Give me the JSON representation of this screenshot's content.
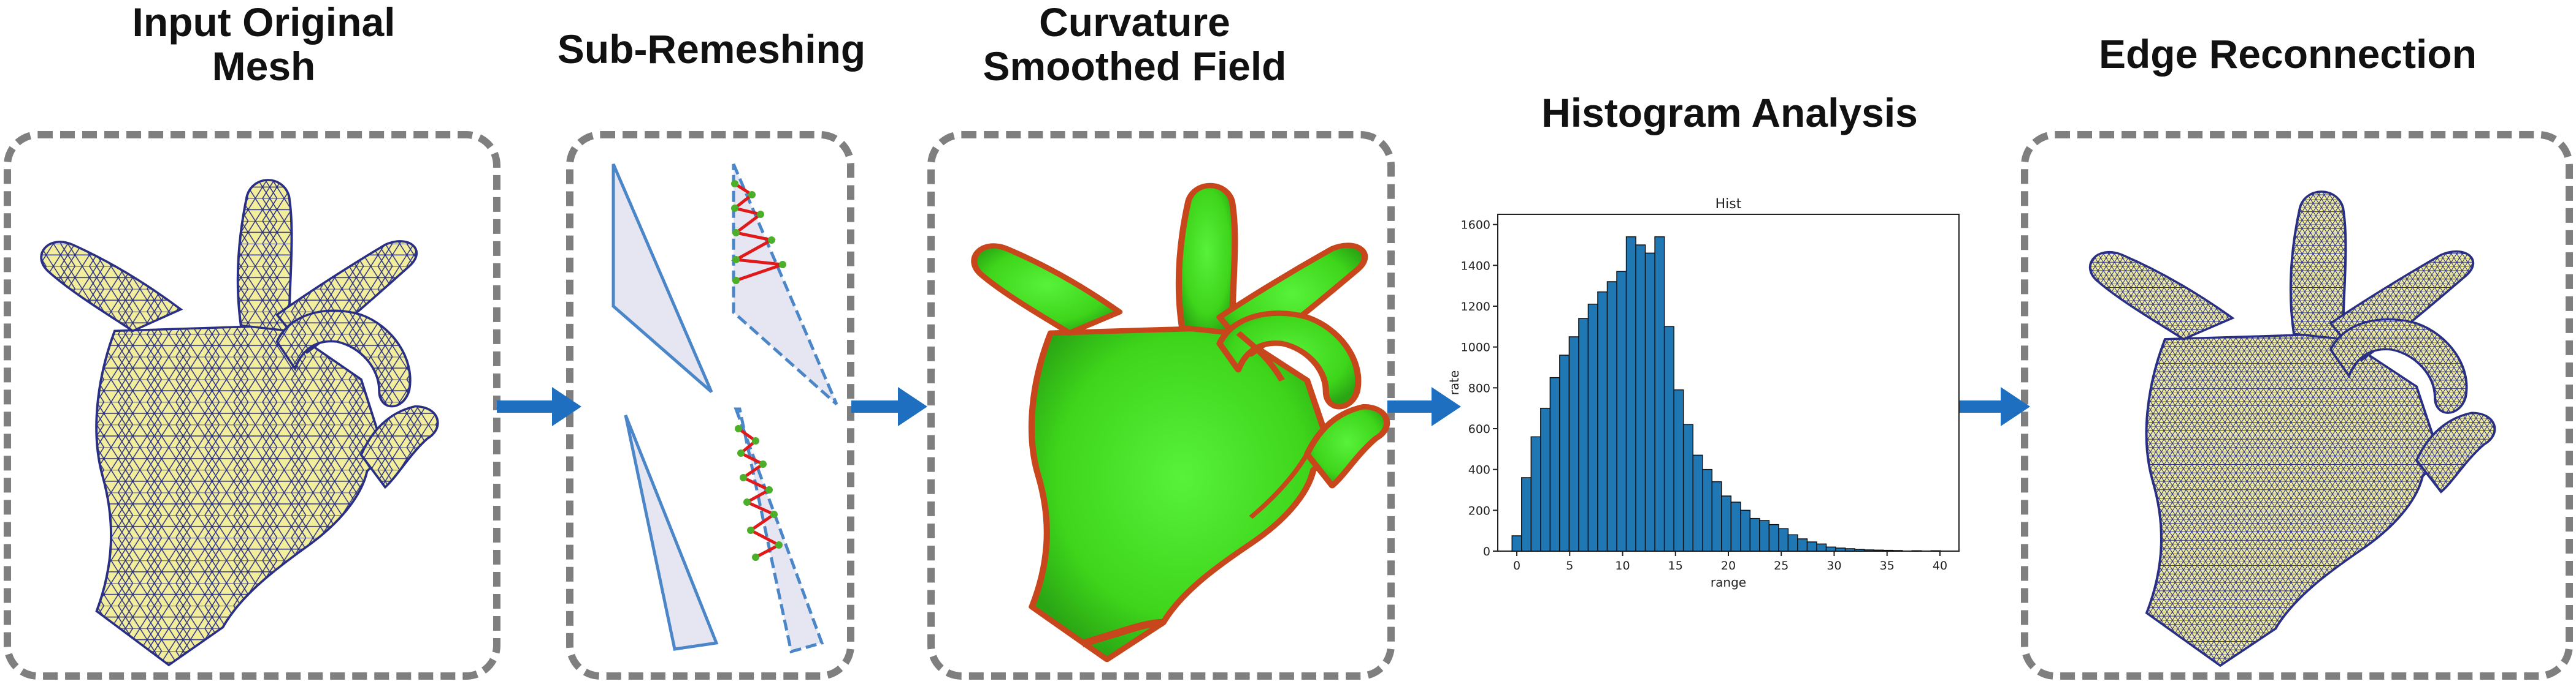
{
  "stages": [
    {
      "title_line1": "Input Original",
      "title_line2": "Mesh"
    },
    {
      "title_line1": "Sub-Remeshing",
      "title_line2": ""
    },
    {
      "title_line1": "Curvature",
      "title_line2": "Smoothed Field"
    },
    {
      "title_line1": "Histogram Analysis",
      "title_line2": ""
    },
    {
      "title_line1": "Edge Reconnection",
      "title_line2": ""
    }
  ],
  "colors": {
    "arrow": "#1f6fc1",
    "mesh_fill": "#f2ee9c",
    "mesh_edge": "#2a2f86",
    "field_green": "#3ee01a",
    "field_red": "#c8461b",
    "triangle_fill": "#e6e6f2",
    "triangle_edge": "#4a86c8",
    "refine_red": "#e01a1a",
    "refine_green": "#4caf2a",
    "bar": "#1f77b4",
    "panel_border": "#7f7f7f"
  },
  "chart_data": {
    "type": "bar",
    "title": "Hist",
    "xlabel": "range",
    "ylabel": "rate",
    "x_ticks": [
      "0",
      "5",
      "10",
      "15",
      "20",
      "25",
      "30",
      "35",
      "40"
    ],
    "y_ticks": [
      "0",
      "200",
      "400",
      "600",
      "800",
      "1000",
      "1200",
      "1400",
      "1600"
    ],
    "xlim": [
      -1.8,
      41.8
    ],
    "ylim": [
      0,
      1650
    ],
    "bin_width": 0.9,
    "bin_centers": [
      0,
      0.9,
      1.8,
      2.7,
      3.6,
      4.5,
      5.4,
      6.3,
      7.2,
      8.1,
      9.0,
      9.9,
      10.8,
      11.7,
      12.6,
      13.5,
      14.4,
      15.3,
      16.2,
      17.1,
      18.0,
      18.9,
      19.8,
      20.7,
      21.6,
      22.5,
      23.4,
      24.3,
      25.2,
      26.1,
      27.0,
      27.9,
      28.8,
      29.7,
      30.6,
      31.5,
      32.4,
      33.3,
      34.2,
      35.1,
      36.0,
      37.8,
      39.6
    ],
    "values": [
      75,
      360,
      560,
      700,
      850,
      960,
      1050,
      1140,
      1210,
      1270,
      1320,
      1370,
      1540,
      1500,
      1460,
      1540,
      1100,
      790,
      620,
      470,
      400,
      340,
      270,
      240,
      200,
      160,
      150,
      130,
      110,
      80,
      60,
      45,
      35,
      20,
      15,
      12,
      8,
      6,
      5,
      4,
      3,
      2,
      2
    ]
  }
}
